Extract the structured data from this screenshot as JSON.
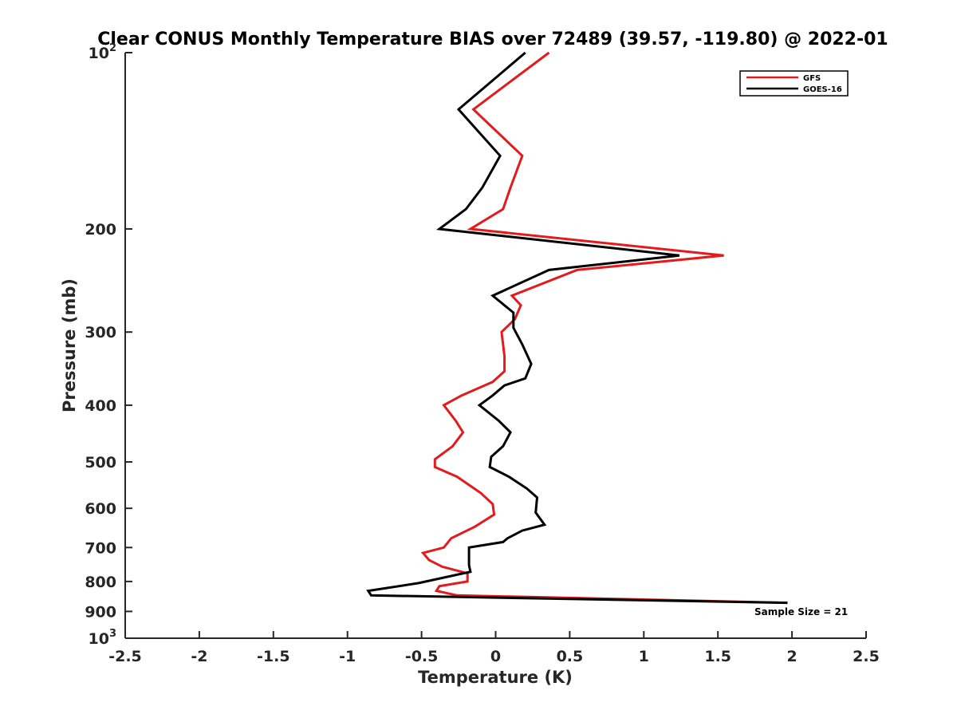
{
  "chart_data": {
    "type": "line",
    "title": "Clear CONUS Monthly Temperature BIAS over 72489 (39.57, -119.80) @ 2022-01",
    "xlabel": "Temperature (K)",
    "ylabel": "Pressure (mb)",
    "xlim": [
      -2.5,
      2.5
    ],
    "ylim": [
      100,
      1000
    ],
    "y_scale": "log",
    "y_reversed": true,
    "grid": false,
    "legend_position": "top-right",
    "x_ticks": [
      "-2.5",
      "-2",
      "-1.5",
      "-1",
      "-0.5",
      "0",
      "0.5",
      "1",
      "1.5",
      "2",
      "2.5"
    ],
    "y_ticks": [
      {
        "value": 100,
        "base": "10",
        "exp": "2"
      },
      {
        "value": 200,
        "label": "200"
      },
      {
        "value": 300,
        "label": "300"
      },
      {
        "value": 400,
        "label": "400"
      },
      {
        "value": 500,
        "label": "500"
      },
      {
        "value": 600,
        "label": "600"
      },
      {
        "value": 700,
        "label": "700"
      },
      {
        "value": 800,
        "label": "800"
      },
      {
        "value": 900,
        "label": "900"
      },
      {
        "value": 1000,
        "base": "10",
        "exp": "3"
      }
    ],
    "series": [
      {
        "name": "GFS",
        "color": "#e41a1c",
        "points": [
          [
            0.36,
            100
          ],
          [
            -0.15,
            125
          ],
          [
            0.18,
            150
          ],
          [
            0.1,
            170
          ],
          [
            0.05,
            185
          ],
          [
            -0.17,
            200
          ],
          [
            1.54,
            222
          ],
          [
            0.55,
            235
          ],
          [
            0.11,
            260
          ],
          [
            0.17,
            270
          ],
          [
            0.13,
            285
          ],
          [
            0.04,
            300
          ],
          [
            0.06,
            330
          ],
          [
            0.06,
            350
          ],
          [
            -0.02,
            365
          ],
          [
            -0.23,
            385
          ],
          [
            -0.35,
            400
          ],
          [
            -0.27,
            425
          ],
          [
            -0.22,
            445
          ],
          [
            -0.29,
            470
          ],
          [
            -0.41,
            495
          ],
          [
            -0.41,
            510
          ],
          [
            -0.26,
            530
          ],
          [
            -0.1,
            565
          ],
          [
            -0.02,
            590
          ],
          [
            -0.01,
            615
          ],
          [
            -0.14,
            645
          ],
          [
            -0.3,
            675
          ],
          [
            -0.35,
            700
          ],
          [
            -0.49,
            715
          ],
          [
            -0.45,
            735
          ],
          [
            -0.36,
            755
          ],
          [
            -0.19,
            775
          ],
          [
            -0.19,
            800
          ],
          [
            -0.38,
            815
          ],
          [
            -0.4,
            830
          ],
          [
            -0.26,
            845
          ],
          [
            1.97,
            870
          ]
        ]
      },
      {
        "name": "GOES-16",
        "color": "#000000",
        "points": [
          [
            0.2,
            100
          ],
          [
            -0.25,
            125
          ],
          [
            0.03,
            150
          ],
          [
            -0.09,
            170
          ],
          [
            -0.2,
            185
          ],
          [
            -0.38,
            200
          ],
          [
            1.24,
            222
          ],
          [
            0.36,
            235
          ],
          [
            -0.02,
            260
          ],
          [
            0.12,
            278
          ],
          [
            0.12,
            295
          ],
          [
            0.18,
            315
          ],
          [
            0.24,
            340
          ],
          [
            0.2,
            360
          ],
          [
            0.06,
            370
          ],
          [
            -0.02,
            385
          ],
          [
            -0.11,
            400
          ],
          [
            0.02,
            425
          ],
          [
            0.1,
            445
          ],
          [
            0.05,
            470
          ],
          [
            -0.03,
            490
          ],
          [
            -0.04,
            510
          ],
          [
            0.09,
            530
          ],
          [
            0.21,
            555
          ],
          [
            0.28,
            575
          ],
          [
            0.27,
            610
          ],
          [
            0.33,
            640
          ],
          [
            0.18,
            655
          ],
          [
            0.08,
            675
          ],
          [
            0.05,
            685
          ],
          [
            -0.18,
            700
          ],
          [
            -0.18,
            750
          ],
          [
            -0.17,
            770
          ],
          [
            -0.52,
            805
          ],
          [
            -0.86,
            830
          ],
          [
            -0.84,
            845
          ],
          [
            1.97,
            870
          ]
        ]
      }
    ],
    "annotation": "Sample Size = 21"
  }
}
